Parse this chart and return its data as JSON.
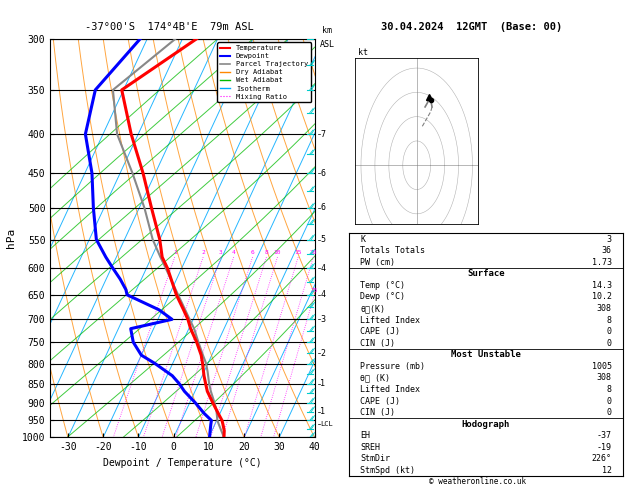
{
  "title_left": "-37°00'S  174°4B'E  79m ASL",
  "title_right": "30.04.2024  12GMT  (Base: 00)",
  "xlabel": "Dewpoint / Temperature (°C)",
  "ylabel_left": "hPa",
  "pressure_levels": [
    300,
    350,
    400,
    450,
    500,
    550,
    600,
    650,
    700,
    750,
    800,
    850,
    900,
    950,
    1000
  ],
  "temp_range": [
    -35,
    40
  ],
  "skew_factor": 0.7,
  "temp_profile": {
    "pressure": [
      1000,
      980,
      960,
      950,
      930,
      900,
      870,
      850,
      830,
      800,
      780,
      750,
      720,
      700,
      680,
      650,
      600,
      580,
      550,
      500,
      450,
      400,
      350,
      300
    ],
    "temp": [
      14.3,
      13.5,
      12.2,
      11.5,
      9.5,
      6.5,
      3.5,
      2.0,
      0.5,
      -1.5,
      -3.0,
      -6.0,
      -9.5,
      -11.5,
      -14.0,
      -18.0,
      -24.0,
      -27.0,
      -30.0,
      -36.5,
      -43.5,
      -52.0,
      -60.5,
      -46.0
    ]
  },
  "dewp_profile": {
    "pressure": [
      1000,
      980,
      960,
      950,
      930,
      900,
      870,
      850,
      830,
      800,
      780,
      750,
      720,
      700,
      680,
      650,
      640,
      620,
      600,
      580,
      550,
      500,
      450,
      400,
      350,
      300
    ],
    "dewp": [
      10.2,
      9.5,
      8.8,
      8.5,
      5.5,
      1.5,
      -3.0,
      -5.5,
      -8.5,
      -15.0,
      -20.0,
      -24.0,
      -26.5,
      -16.0,
      -21.0,
      -32.0,
      -33.0,
      -36.0,
      -39.5,
      -43.0,
      -48.0,
      -53.0,
      -58.0,
      -65.0,
      -68.0,
      -62.0
    ]
  },
  "parcel_profile": {
    "pressure": [
      1000,
      960,
      950,
      920,
      900,
      870,
      850,
      820,
      800,
      780,
      750,
      720,
      700,
      650,
      600,
      580,
      550,
      500,
      450,
      400,
      350,
      300
    ],
    "temp": [
      14.3,
      11.0,
      10.2,
      8.5,
      7.0,
      4.5,
      3.0,
      1.0,
      -0.5,
      -2.5,
      -5.5,
      -8.5,
      -11.0,
      -17.5,
      -24.5,
      -27.5,
      -32.0,
      -38.5,
      -46.5,
      -56.0,
      -63.0,
      -52.0
    ]
  },
  "lcl_pressure": 960,
  "mixing_ratio_values": [
    1,
    2,
    3,
    4,
    6,
    8,
    10,
    15,
    20,
    25
  ],
  "stats": {
    "K": 3,
    "Totals Totals": 36,
    "PW (cm)": 1.73,
    "Surface Temp (C)": 14.3,
    "Surface Dewp (C)": 10.2,
    "theta_e_surface": 308,
    "Lifted Index": 8,
    "CAPE_surface": 0,
    "CIN_surface": 0,
    "MU_Pressure": 1005,
    "theta_e_MU": 308,
    "MU_LI": 8,
    "MU_CAPE": 0,
    "MU_CIN": 0,
    "EH": -37,
    "SREH": -19,
    "StmDir": 226,
    "StmSpd": 12
  },
  "color_temp": "#ff0000",
  "color_dewp": "#0000ff",
  "color_parcel": "#888888",
  "color_dry_adiabat": "#ff8800",
  "color_wet_adiabat": "#00bb00",
  "color_isotherm": "#00aaff",
  "color_mixing_ratio": "#ff00ff",
  "color_wind_barb": "#00cccc"
}
